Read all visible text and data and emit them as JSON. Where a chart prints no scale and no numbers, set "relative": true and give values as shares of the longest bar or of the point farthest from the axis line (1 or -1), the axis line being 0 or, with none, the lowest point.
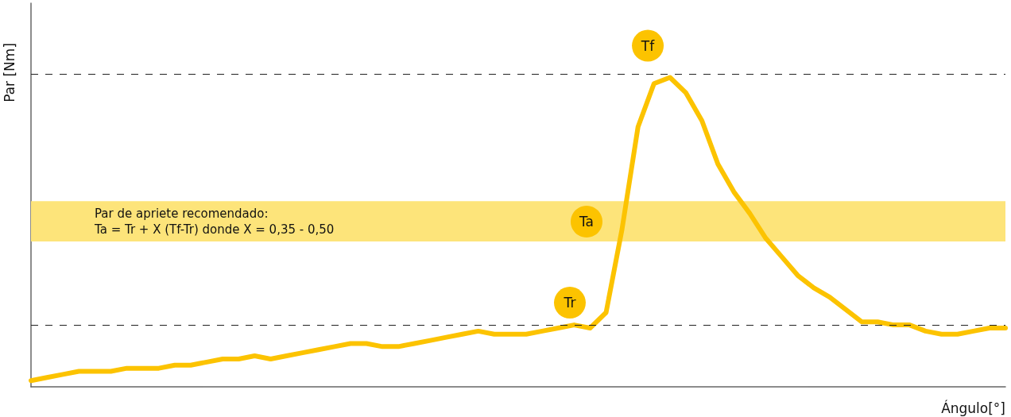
{
  "chart_data": {
    "type": "line",
    "relative": true,
    "xlabel": "Ángulo[°]",
    "ylabel": "Par [Nm]",
    "categories": [
      null,
      null,
      null,
      null,
      null,
      null,
      null,
      null,
      null,
      null,
      null,
      null,
      null,
      null,
      null,
      null,
      null,
      null,
      null,
      null,
      null,
      null,
      null,
      null,
      null,
      null,
      null,
      null,
      null,
      null,
      null,
      null,
      null,
      null,
      null,
      null,
      null,
      null,
      null,
      null,
      null,
      null,
      null,
      null,
      null,
      null,
      null,
      null,
      null,
      null,
      null,
      null,
      null,
      null,
      null,
      null,
      null,
      null,
      null,
      null,
      null,
      null
    ],
    "series": [
      {
        "color": "#fcc300",
        "values": [
          0.02,
          0.03,
          0.04,
          0.05,
          0.05,
          0.05,
          0.06,
          0.06,
          0.06,
          0.07,
          0.07,
          0.08,
          0.09,
          0.09,
          0.1,
          0.09,
          0.1,
          0.11,
          0.12,
          0.13,
          0.14,
          0.14,
          0.13,
          0.13,
          0.14,
          0.15,
          0.16,
          0.17,
          0.18,
          0.17,
          0.17,
          0.17,
          0.18,
          0.19,
          0.2,
          0.19,
          0.24,
          0.51,
          0.84,
          0.98,
          1,
          0.95,
          0.86,
          0.72,
          0.63,
          0.56,
          0.48,
          0.42,
          0.36,
          0.32,
          0.29,
          0.25,
          0.21,
          0.21,
          0.2,
          0.2,
          0.18,
          0.17,
          0.17,
          0.18,
          0.19,
          0.19
        ]
      }
    ],
    "marker": "none",
    "line_style": "solid",
    "grid": false,
    "tick_labels": false,
    "ref_lines": [
      {
        "axis": "y",
        "value": 1.01,
        "label": "Tf",
        "color": "#222222",
        "line_style": "dashed"
      },
      {
        "axis": "y",
        "value": 0.2,
        "label": "Tr",
        "color": "#222222",
        "line_style": "dashed"
      }
    ],
    "bands": [
      {
        "axis": "y",
        "from": 0.47,
        "to": 0.6,
        "label": "Par de apriete recomendado:\nTa = Tr + X (Tf-Tr) donde X = 0,35 - 0,50",
        "color": "#fde47a"
      }
    ],
    "annotations": [
      "Ta"
    ]
  }
}
